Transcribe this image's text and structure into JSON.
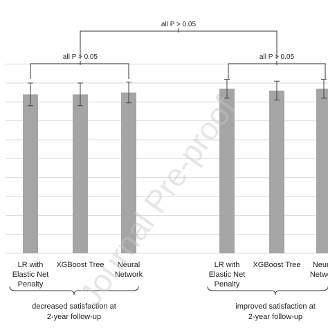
{
  "chart_data": {
    "type": "bar",
    "categories": [
      "LR with Elastic Net Penalty",
      "XGBoost Tree",
      "Neural Network"
    ],
    "category_lines": [
      [
        "LR with",
        "Elastic Net",
        "Penalty"
      ],
      [
        "XGBoost Tree"
      ],
      [
        "Neural",
        "Network"
      ]
    ],
    "groups": [
      {
        "label_lines": [
          "decreased satisfaction at",
          "2-year follow-up"
        ],
        "values": [
          0.84,
          0.84,
          0.85
        ],
        "errors": [
          0.06,
          0.06,
          0.055
        ],
        "bracket_label": "all P > 0.05"
      },
      {
        "label_lines": [
          "improved satisfaction at",
          "2-year follow-up"
        ],
        "values": [
          0.87,
          0.86,
          0.87
        ],
        "errors": [
          0.05,
          0.05,
          0.05
        ],
        "bracket_label": "all P > 0.05"
      }
    ],
    "overall_bracket_label": "all P > 0.05",
    "ylim": [
      0,
      1.05
    ],
    "gridline_step": 0.1,
    "grid": true,
    "colors": {
      "bar": "#a5a5a5",
      "grid": "#d9d9d9",
      "error": "#404040",
      "text": "#222222"
    },
    "watermark": "Journal Pre-proof"
  }
}
